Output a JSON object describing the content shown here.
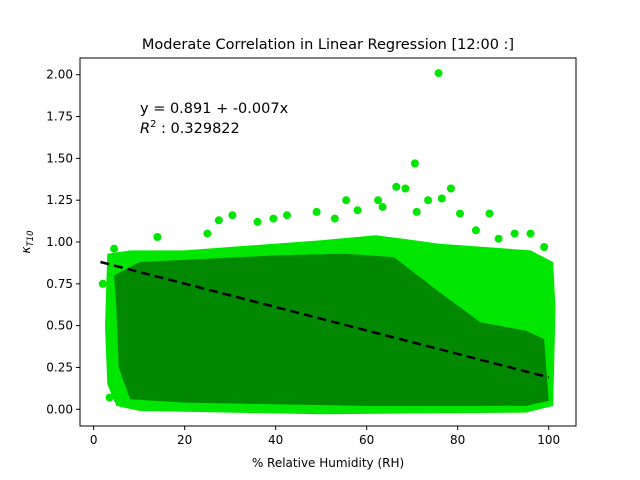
{
  "chart_data": {
    "type": "scatter",
    "title": "Moderate Correlation in Linear Regression [12:00 :]",
    "xlabel": "% Relative Humidity (RH)",
    "ylabel_main": "κ",
    "ylabel_sub": "T10",
    "xlim": [
      -3,
      106
    ],
    "ylim": [
      -0.1,
      2.1
    ],
    "xticks": [
      0,
      20,
      40,
      60,
      80,
      100
    ],
    "yticks": [
      0.0,
      0.25,
      0.5,
      0.75,
      1.0,
      1.25,
      1.5,
      1.75,
      2.0
    ],
    "ytick_labels": [
      "0.00",
      "0.25",
      "0.50",
      "0.75",
      "1.00",
      "1.25",
      "1.50",
      "1.75",
      "2.00"
    ],
    "grid": false,
    "colors": {
      "points": "#00e600",
      "points_dense": "#008800",
      "fit_line": "#000000"
    },
    "regression": {
      "intercept": 0.891,
      "slope": -0.007,
      "x_range": [
        1.5,
        100
      ],
      "equation_label": "y = 0.891 + -0.007x",
      "r2_prefix": "R",
      "r2_sup": "2",
      "r2_value": " : 0.329822"
    },
    "outliers": [
      {
        "x": 75.8,
        "y": 2.01
      },
      {
        "x": 70.6,
        "y": 1.47
      },
      {
        "x": 66.5,
        "y": 1.33
      },
      {
        "x": 68.5,
        "y": 1.32
      },
      {
        "x": 78.5,
        "y": 1.32
      },
      {
        "x": 73.5,
        "y": 1.25
      },
      {
        "x": 76.5,
        "y": 1.26
      },
      {
        "x": 55.5,
        "y": 1.25
      },
      {
        "x": 62.5,
        "y": 1.25
      },
      {
        "x": 63.5,
        "y": 1.21
      },
      {
        "x": 58.0,
        "y": 1.19
      },
      {
        "x": 49.0,
        "y": 1.18
      },
      {
        "x": 42.5,
        "y": 1.16
      },
      {
        "x": 30.5,
        "y": 1.16
      },
      {
        "x": 27.5,
        "y": 1.13
      },
      {
        "x": 36.0,
        "y": 1.12
      },
      {
        "x": 39.5,
        "y": 1.14
      },
      {
        "x": 53.0,
        "y": 1.14
      },
      {
        "x": 71.0,
        "y": 1.18
      },
      {
        "x": 80.5,
        "y": 1.17
      },
      {
        "x": 87.0,
        "y": 1.17
      },
      {
        "x": 25.0,
        "y": 1.05
      },
      {
        "x": 14.0,
        "y": 1.03
      },
      {
        "x": 4.5,
        "y": 0.96
      },
      {
        "x": 2.0,
        "y": 0.75
      },
      {
        "x": 3.5,
        "y": 0.07
      },
      {
        "x": 100.5,
        "y": 0.62
      },
      {
        "x": 92.5,
        "y": 1.05
      },
      {
        "x": 96.0,
        "y": 1.05
      },
      {
        "x": 89.0,
        "y": 1.02
      },
      {
        "x": 84.0,
        "y": 1.07
      },
      {
        "x": 99.0,
        "y": 0.97
      }
    ]
  }
}
